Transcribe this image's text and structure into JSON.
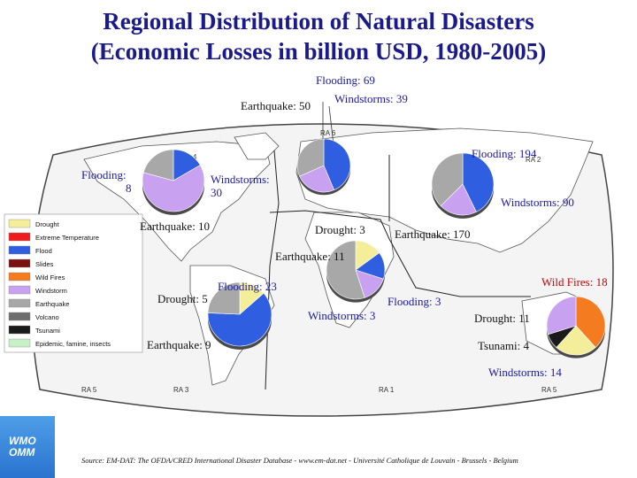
{
  "title_line1": "Regional Distribution of Natural Disasters",
  "title_line2": "(Economic Losses in billion USD, 1980-2005)",
  "legend": [
    {
      "label": "Drought",
      "color": "#f4ee9a"
    },
    {
      "label": "Extreme Temperature",
      "color": "#ee1c1c"
    },
    {
      "label": "Flood",
      "color": "#2f5fe0"
    },
    {
      "label": "Slides",
      "color": "#7a1010"
    },
    {
      "label": "Wild Fires",
      "color": "#f47b20"
    },
    {
      "label": "Windstorm",
      "color": "#c8a2f0"
    },
    {
      "label": "Earthquake",
      "color": "#a8a8a8"
    },
    {
      "label": "Volcano",
      "color": "#6e6e6e"
    },
    {
      "label": "Tsunami",
      "color": "#1a1a1a"
    },
    {
      "label": "Epidemic, famine, insects",
      "color": "#c8f0c8"
    }
  ],
  "regions": [
    "RA 4",
    "RA 6",
    "RA 2",
    "RA 5",
    "RA 3",
    "RA 1",
    "RA 5"
  ],
  "labels": {
    "eu_flood": "Flooding: 69",
    "eu_eq": "Earthquake: 50",
    "eu_wind": "Windstorms: 39",
    "na_flood_1": "Flooding:",
    "na_flood_2": "8",
    "na_wind_1": "Windstorms:",
    "na_wind_2": "30",
    "na_eq": "Earthquake: 10",
    "as_flood": "Flooding: 194",
    "as_wind": "Windstorms: 90",
    "as_eq": "Earthquake: 170",
    "af_drought": "Drought: 3",
    "af_eq": "Earthquake: 11",
    "af_flood": "Flooding: 3",
    "af_wind": "Windstorms: 3",
    "sa_flood": "Flooding: 23",
    "sa_drought": "Drought: 5",
    "sa_eq": "Earthquake: 9",
    "oc_fire": "Wild Fires: 18",
    "oc_drought": "Drought: 11",
    "oc_tsunami": "Tsunami: 4",
    "oc_wind": "Windstorms: 14"
  },
  "chart_data": [
    {
      "type": "pie",
      "region": "North America",
      "slices": [
        {
          "category": "Flood",
          "value": 8
        },
        {
          "category": "Windstorm",
          "value": 30
        },
        {
          "category": "Earthquake",
          "value": 10
        }
      ]
    },
    {
      "type": "pie",
      "region": "Europe",
      "slices": [
        {
          "category": "Flood",
          "value": 69
        },
        {
          "category": "Windstorm",
          "value": 39
        },
        {
          "category": "Earthquake",
          "value": 50
        }
      ]
    },
    {
      "type": "pie",
      "region": "Asia",
      "slices": [
        {
          "category": "Flood",
          "value": 194
        },
        {
          "category": "Windstorm",
          "value": 90
        },
        {
          "category": "Earthquake",
          "value": 170
        }
      ]
    },
    {
      "type": "pie",
      "region": "Africa",
      "slices": [
        {
          "category": "Drought",
          "value": 3
        },
        {
          "category": "Flood",
          "value": 3
        },
        {
          "category": "Windstorm",
          "value": 3
        },
        {
          "category": "Earthquake",
          "value": 11
        }
      ]
    },
    {
      "type": "pie",
      "region": "South America",
      "slices": [
        {
          "category": "Drought",
          "value": 5
        },
        {
          "category": "Flood",
          "value": 23
        },
        {
          "category": "Earthquake",
          "value": 9
        }
      ]
    },
    {
      "type": "pie",
      "region": "South-West Pacific",
      "slices": [
        {
          "category": "Wild Fires",
          "value": 18
        },
        {
          "category": "Drought",
          "value": 11
        },
        {
          "category": "Tsunami",
          "value": 4
        },
        {
          "category": "Windstorm",
          "value": 14
        }
      ]
    }
  ],
  "source": "Source: EM-DAT: The OFDA/CRED International Disaster Database - www.em-dat.net - Université Catholique de Louvain - Brussels - Belgium",
  "logo_line1": "WMO",
  "logo_line2": "OMM"
}
